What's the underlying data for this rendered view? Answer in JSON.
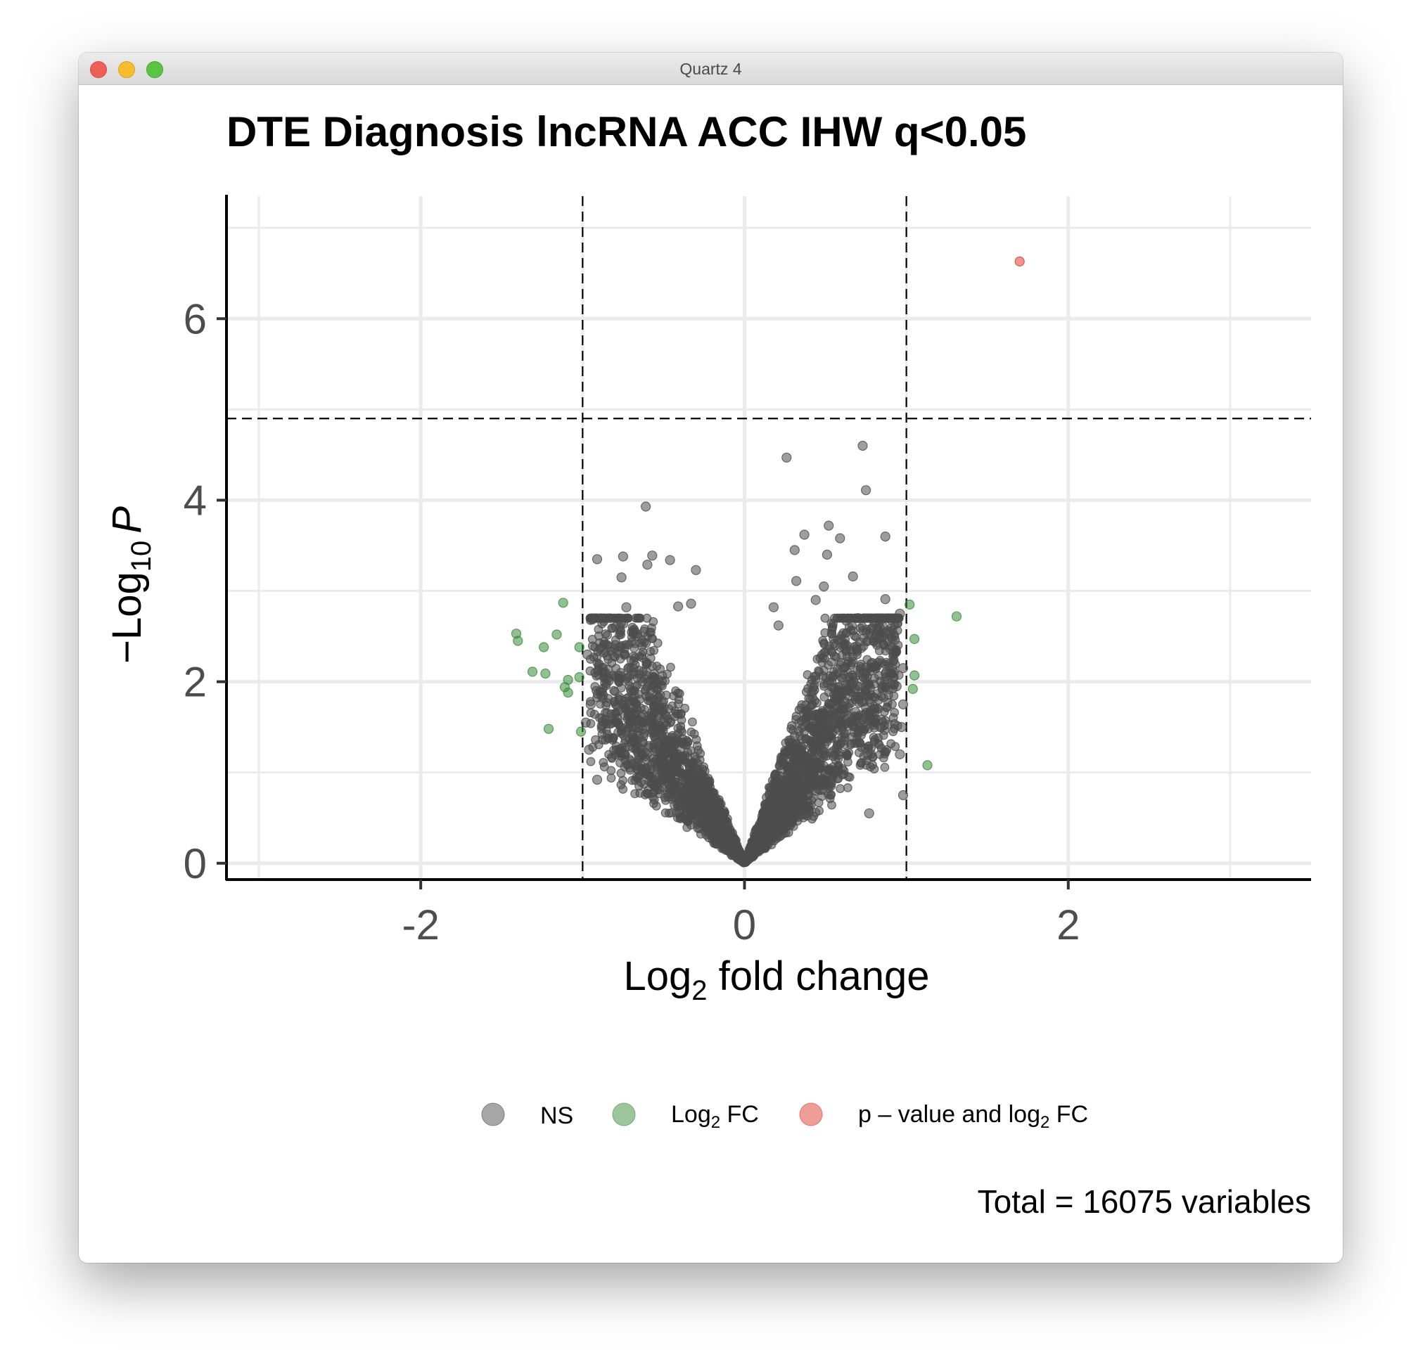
{
  "window": {
    "title": "Quartz 4"
  },
  "chart_data": {
    "type": "scatter",
    "title": "DTE Diagnosis lncRNA ACC IHW q<0.05",
    "xlabel": {
      "main": "Log",
      "sub": "2",
      "rest": " fold change"
    },
    "ylabel": {
      "prefix": "−Log",
      "sub": "10",
      "italic": "P"
    },
    "xlim": [
      -3.2,
      3.5
    ],
    "ylim": [
      -0.18,
      7.35
    ],
    "xticks": [
      -2,
      0,
      2
    ],
    "xtick_labels": [
      "-2",
      "0",
      "2"
    ],
    "yticks": [
      0,
      2,
      4,
      6
    ],
    "ytick_labels": [
      "0",
      "2",
      "4",
      "6"
    ],
    "grid": true,
    "fc_cutoff": 1.0,
    "p_cutoff": 4.9,
    "legend": {
      "placement": "bottom",
      "items": [
        {
          "label": "NS",
          "color": "#4d4d4d"
        },
        {
          "label": "Log",
          "sub": "2",
          "rest": " FC",
          "color": "#3a8c3a"
        },
        {
          "label": "p – value and log",
          "sub": "2",
          "rest": " FC",
          "color": "#e03b30"
        }
      ]
    },
    "caption": "Total = 16075 variables",
    "series": [
      {
        "name": "NS",
        "color": "#4d4d4d",
        "points": [
          [
            0.26,
            4.47
          ],
          [
            0.73,
            4.6
          ],
          [
            0.75,
            4.11
          ],
          [
            -0.61,
            3.93
          ],
          [
            0.52,
            3.72
          ],
          [
            0.87,
            3.6
          ],
          [
            0.37,
            3.62
          ],
          [
            0.59,
            3.58
          ],
          [
            -0.91,
            3.35
          ],
          [
            -0.75,
            3.38
          ],
          [
            -0.57,
            3.39
          ],
          [
            -0.46,
            3.34
          ],
          [
            -0.6,
            3.29
          ],
          [
            -0.3,
            3.23
          ],
          [
            0.51,
            3.4
          ],
          [
            0.31,
            3.45
          ],
          [
            0.67,
            3.16
          ],
          [
            0.49,
            3.05
          ],
          [
            -0.76,
            3.15
          ],
          [
            0.87,
            2.91
          ],
          [
            0.32,
            3.11
          ],
          [
            -0.33,
            2.86
          ],
          [
            -0.41,
            2.83
          ],
          [
            -0.73,
            2.82
          ],
          [
            0.44,
            2.9
          ],
          [
            0.96,
            2.75
          ],
          [
            0.18,
            2.82
          ],
          [
            0.21,
            2.62
          ],
          [
            -0.97,
            2.3
          ],
          [
            -0.83,
            2.38
          ],
          [
            0.98,
            2.15
          ],
          [
            0.98,
            1.75
          ],
          [
            0.97,
            1.5
          ],
          [
            0.96,
            1.2
          ],
          [
            0.98,
            0.75
          ],
          [
            -0.96,
            1.25
          ],
          [
            -0.91,
            0.92
          ],
          [
            -0.98,
            1.55
          ],
          [
            -0.95,
            1.75
          ],
          [
            0.94,
            1.95
          ],
          [
            0.85,
            2.5
          ],
          [
            -0.86,
            2.1
          ],
          [
            0.7,
            2.7
          ],
          [
            -0.62,
            2.55
          ],
          [
            0.77,
            0.55
          ]
        ],
        "clusters": [
          {
            "side": -1,
            "count": 1700
          },
          {
            "side": 1,
            "count": 2200
          }
        ]
      },
      {
        "name": "Log2 FC",
        "color": "#3a8c3a",
        "points": [
          [
            -1.41,
            2.53
          ],
          [
            -1.4,
            2.45
          ],
          [
            -1.12,
            2.87
          ],
          [
            -1.16,
            2.52
          ],
          [
            -1.24,
            2.38
          ],
          [
            -1.31,
            2.11
          ],
          [
            -1.23,
            2.09
          ],
          [
            -1.09,
            2.02
          ],
          [
            -1.11,
            1.94
          ],
          [
            -1.09,
            1.88
          ],
          [
            -1.02,
            2.05
          ],
          [
            -1.02,
            2.38
          ],
          [
            -1.21,
            1.48
          ],
          [
            -1.01,
            1.45
          ],
          [
            1.02,
            2.85
          ],
          [
            1.05,
            2.47
          ],
          [
            1.31,
            2.72
          ],
          [
            1.05,
            2.07
          ],
          [
            1.04,
            1.92
          ],
          [
            1.13,
            1.08
          ]
        ]
      },
      {
        "name": "p-value and log2 FC",
        "color": "#e03b30",
        "points": [
          [
            1.7,
            6.63
          ]
        ]
      }
    ]
  }
}
